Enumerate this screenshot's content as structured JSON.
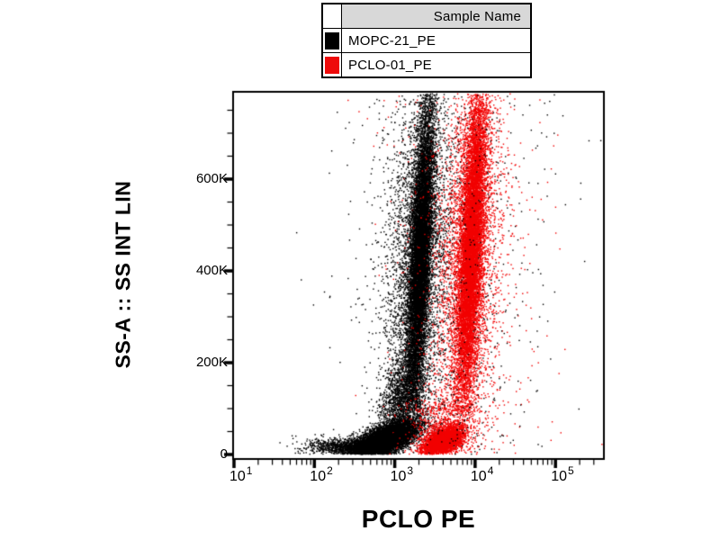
{
  "legend": {
    "header": "Sample Name",
    "rows": [
      {
        "label": "MOPC-21_PE",
        "color": "#000000"
      },
      {
        "label": "PCLO-01_PE",
        "color": "#ee0a0a"
      }
    ]
  },
  "axes": {
    "x": {
      "title": "PCLO PE",
      "scale": "log10",
      "ticks": [
        {
          "base": "10",
          "exp": "1",
          "log": 1
        },
        {
          "base": "10",
          "exp": "2",
          "log": 2
        },
        {
          "base": "10",
          "exp": "3",
          "log": 3
        },
        {
          "base": "10",
          "exp": "4",
          "log": 4
        },
        {
          "base": "10",
          "exp": "5",
          "log": 5
        }
      ]
    },
    "y": {
      "title": "SS-A :: SS INT LIN",
      "scale": "linear",
      "ticks": [
        {
          "label": "0",
          "value_K": 0
        },
        {
          "label": "200K",
          "value_K": 200
        },
        {
          "label": "400K",
          "value_K": 400
        },
        {
          "label": "600K",
          "value_K": 600
        }
      ],
      "minor_step_K": 50
    }
  },
  "chart_data": {
    "type": "scatter",
    "subtype": "flow-cytometry-dot-plot",
    "title": "",
    "xlabel": "PCLO PE",
    "ylabel": "SS-A :: SS INT LIN",
    "x_scale": "log10",
    "xlim_log10": [
      1.0,
      5.59
    ],
    "ylim_K": [
      0,
      788
    ],
    "x_major_ticks_log10": [
      1,
      2,
      3,
      4,
      5
    ],
    "y_major_ticks_K": [
      0,
      200,
      400,
      600
    ],
    "grid": false,
    "legend_position": "top-center",
    "series": [
      {
        "name": "MOPC-21_PE",
        "color": "#000000",
        "populations": [
          {
            "kind": "blob",
            "z": 1,
            "count": 7500,
            "x_mean": 2.88,
            "x_sd": 0.2,
            "y_mean": 32,
            "y_sd": 16,
            "y_min": 2,
            "y_max": 105,
            "xy_tilt": 14
          },
          {
            "kind": "blob",
            "z": 1,
            "count": 900,
            "x_mean": 2.38,
            "x_sd": 0.26,
            "y_mean": 18,
            "y_sd": 10,
            "y_min": 2,
            "y_max": 55,
            "xy_tilt": 0
          },
          {
            "kind": "blob",
            "z": 1,
            "count": 1400,
            "x_mean": 3.08,
            "x_sd": 0.13,
            "y_mean": 115,
            "y_sd": 50,
            "y_min": 30,
            "y_max": 260,
            "xy_tilt": 20
          },
          {
            "kind": "band",
            "z": 1,
            "count": 10500,
            "x_base": 3.3,
            "x_drift_per_K": 0.0003,
            "x_sd": 0.065,
            "y_mean": 430,
            "y_sd": 170,
            "y_min": 95,
            "y_max": 787
          },
          {
            "kind": "band",
            "z": 1,
            "count": 3200,
            "x_base": 3.28,
            "x_drift_per_K": 0.0003,
            "x_sd": 0.21,
            "y_mean": 420,
            "y_sd": 200,
            "y_min": 70,
            "y_max": 787
          },
          {
            "kind": "spray",
            "z": 3,
            "count": 750,
            "x_mean": 3.5,
            "x_sd": 0.55,
            "y_min": 2,
            "y_max": 787
          },
          {
            "kind": "spray",
            "z": 3,
            "count": 70,
            "x_mean": 4.55,
            "x_sd": 0.45,
            "y_min": 2,
            "y_max": 787
          }
        ]
      },
      {
        "name": "PCLO-01_PE",
        "color": "#f20000",
        "populations": [
          {
            "kind": "blob",
            "z": 2,
            "count": 3600,
            "x_mean": 3.6,
            "x_sd": 0.12,
            "y_mean": 30,
            "y_sd": 14,
            "y_min": 2,
            "y_max": 90,
            "xy_tilt": 8
          },
          {
            "kind": "blob",
            "z": 2,
            "count": 800,
            "x_mean": 3.62,
            "x_sd": 0.22,
            "y_mean": 55,
            "y_sd": 38,
            "y_min": 2,
            "y_max": 170,
            "xy_tilt": 0
          },
          {
            "kind": "band",
            "z": 2,
            "count": 10000,
            "x_base": 3.93,
            "x_drift_per_K": 0.0003,
            "x_sd": 0.075,
            "y_mean": 450,
            "y_sd": 175,
            "y_min": 90,
            "y_max": 787
          },
          {
            "kind": "band",
            "z": 2,
            "count": 3000,
            "x_base": 3.91,
            "x_drift_per_K": 0.0003,
            "x_sd": 0.2,
            "y_mean": 430,
            "y_sd": 205,
            "y_min": 70,
            "y_max": 787
          },
          {
            "kind": "spray",
            "z": 2,
            "count": 550,
            "x_mean": 3.8,
            "x_sd": 0.45,
            "y_min": 2,
            "y_max": 787
          },
          {
            "kind": "spray",
            "z": 2,
            "count": 45,
            "x_mean": 4.5,
            "x_sd": 0.4,
            "y_min": 2,
            "y_max": 787
          }
        ]
      }
    ]
  },
  "render": {
    "seed": 1337,
    "dot_size": 1.4,
    "frame_color": "#000000",
    "header_bg": "#d8d8d8"
  }
}
